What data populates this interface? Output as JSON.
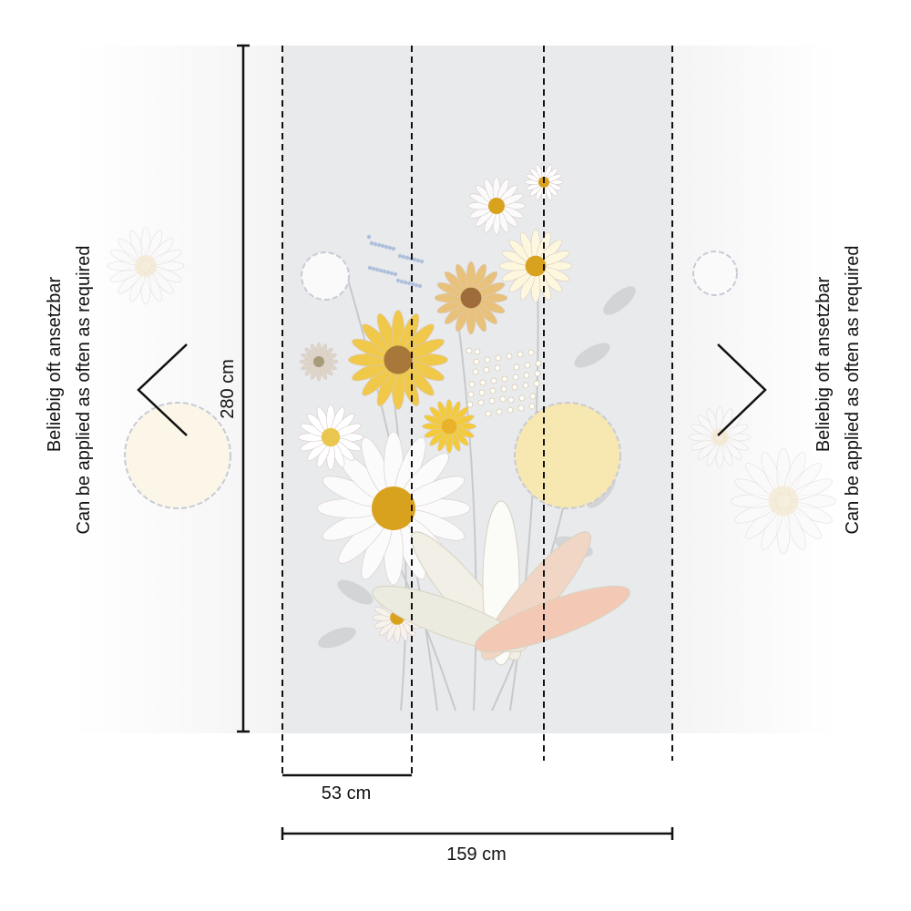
{
  "left_note": {
    "line1": "Beliebig oft ansetzbar",
    "line2": "Can be applied as often as required"
  },
  "right_note": {
    "line1": "Beliebig oft ansetzbar",
    "line2": "Can be applied as often as required"
  },
  "height_label": "280 cm",
  "panel_width_label": "53 cm",
  "total_width_label": "159 cm"
}
